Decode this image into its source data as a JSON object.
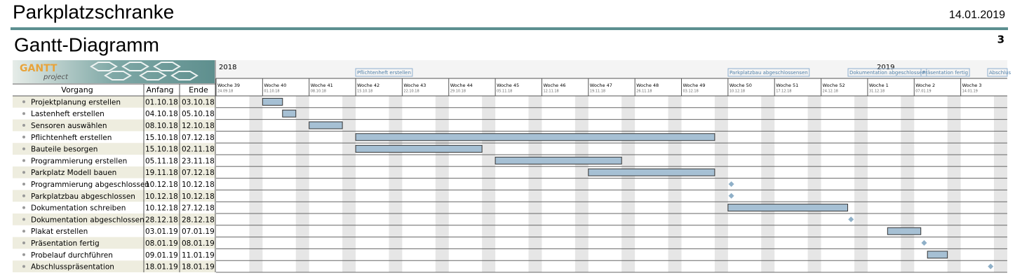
{
  "header": {
    "title": "Parkplatzschranke",
    "date": "14.01.2019",
    "subtitle": "Gantt-Diagramm",
    "page": "3"
  },
  "logo": {
    "name": "GANTT",
    "sub": "project"
  },
  "table": {
    "columns": [
      "Vorgang",
      "Anfang",
      "Ende"
    ],
    "rows": [
      [
        "Projektplanung erstellen",
        "01.10.18",
        "03.10.18"
      ],
      [
        "Lastenheft erstellen",
        "04.10.18",
        "05.10.18"
      ],
      [
        "Sensoren auswählen",
        "08.10.18",
        "12.10.18"
      ],
      [
        "Pflichtenheft erstellen",
        "15.10.18",
        "07.12.18"
      ],
      [
        "Bauteile besorgen",
        "15.10.18",
        "02.11.18"
      ],
      [
        "Programmierung erstellen",
        "05.11.18",
        "23.11.18"
      ],
      [
        "Parkplatz Modell bauen",
        "19.11.18",
        "07.12.18"
      ],
      [
        "Programmierung abgeschlossen",
        "10.12.18",
        "10.12.18"
      ],
      [
        "Parkplatzbau abgeschlossen",
        "10.12.18",
        "10.12.18"
      ],
      [
        "Dokumentation schreiben",
        "10.12.18",
        "27.12.18"
      ],
      [
        "Dokumentation abgeschlossen",
        "28.12.18",
        "28.12.18"
      ],
      [
        "Plakat erstellen",
        "03.01.19",
        "07.01.19"
      ],
      [
        "Präsentation fertig",
        "08.01.19",
        "08.01.19"
      ],
      [
        "Probelauf durchführen",
        "09.01.19",
        "11.01.19"
      ],
      [
        "Abschlusspräsentation",
        "18.01.19",
        "18.01.19"
      ]
    ]
  },
  "timeline": {
    "years": [
      "2018",
      "2019"
    ],
    "milestone_labels": [
      "Pflichtenheft erstellen",
      "Parkplatzbau abgeschlossensen",
      "Dokumentation abgeschlossen",
      "Präsentation fertig",
      "Abschlus"
    ],
    "weeks": [
      {
        "label": "Woche 39",
        "date": "24.09.18"
      },
      {
        "label": "Woche 40",
        "date": "01.10.18"
      },
      {
        "label": "Woche 41",
        "date": "08.10.18"
      },
      {
        "label": "Woche 42",
        "date": "15.10.18"
      },
      {
        "label": "Woche 43",
        "date": "22.10.18"
      },
      {
        "label": "Woche 44",
        "date": "29.10.18"
      },
      {
        "label": "Woche 45",
        "date": "05.11.18"
      },
      {
        "label": "Woche 46",
        "date": "12.11.18"
      },
      {
        "label": "Woche 47",
        "date": "19.11.18"
      },
      {
        "label": "Woche 48",
        "date": "26.11.18"
      },
      {
        "label": "Woche 49",
        "date": "03.12.18"
      },
      {
        "label": "Woche 50",
        "date": "10.12.18"
      },
      {
        "label": "Woche 51",
        "date": "17.12.18"
      },
      {
        "label": "Woche 52",
        "date": "24.12.18"
      },
      {
        "label": "Woche 1",
        "date": "31.12.18"
      },
      {
        "label": "Woche 2",
        "date": "07.01.19"
      },
      {
        "label": "Woche 3",
        "date": "14.01.19"
      }
    ]
  }
}
